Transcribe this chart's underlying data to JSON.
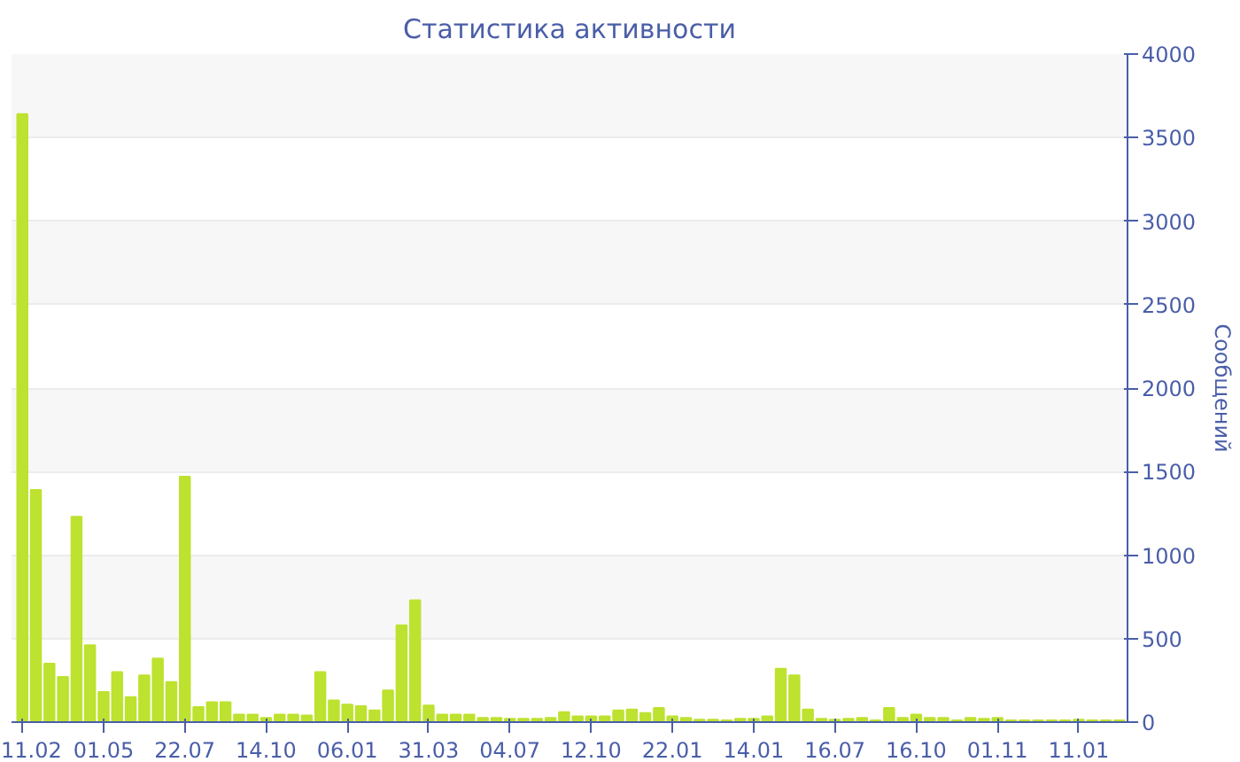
{
  "chart_data": {
    "type": "bar",
    "title": "Статистика активности",
    "ylabel": "Сообщений",
    "categories": [
      "11.02",
      null,
      null,
      null,
      null,
      null,
      "01.05",
      null,
      null,
      null,
      null,
      null,
      "22.07",
      null,
      null,
      null,
      null,
      null,
      "14.10",
      null,
      null,
      null,
      null,
      null,
      "06.01",
      null,
      null,
      null,
      null,
      null,
      "31.03",
      null,
      null,
      null,
      null,
      null,
      "04.07",
      null,
      null,
      null,
      null,
      null,
      "12.10",
      null,
      null,
      null,
      null,
      null,
      "22.01",
      null,
      null,
      null,
      null,
      null,
      "14.01",
      null,
      null,
      null,
      null,
      null,
      "16.07",
      null,
      null,
      null,
      null,
      null,
      "16.10",
      null,
      null,
      null,
      null,
      null,
      "01.11",
      null,
      null,
      null,
      null,
      null,
      "11.01",
      null,
      null,
      null
    ],
    "values": [
      3640,
      1390,
      350,
      270,
      1230,
      460,
      180,
      300,
      150,
      280,
      380,
      240,
      1470,
      90,
      120,
      120,
      45,
      45,
      25,
      45,
      45,
      40,
      300,
      130,
      105,
      95,
      70,
      190,
      580,
      730,
      100,
      45,
      45,
      45,
      25,
      25,
      20,
      20,
      20,
      25,
      60,
      35,
      35,
      35,
      70,
      75,
      55,
      85,
      35,
      25,
      15,
      15,
      10,
      20,
      20,
      35,
      320,
      280,
      75,
      20,
      15,
      20,
      25,
      10,
      85,
      25,
      45,
      25,
      25,
      10,
      25,
      20,
      25,
      10,
      10,
      10,
      10,
      10,
      15,
      10,
      10,
      10
    ],
    "color": "#bde22f",
    "ylim": [
      0,
      4000
    ],
    "yticks": [
      0,
      500,
      1000,
      1500,
      2000,
      2500,
      3000,
      3500,
      4000
    ],
    "grid": "y"
  }
}
